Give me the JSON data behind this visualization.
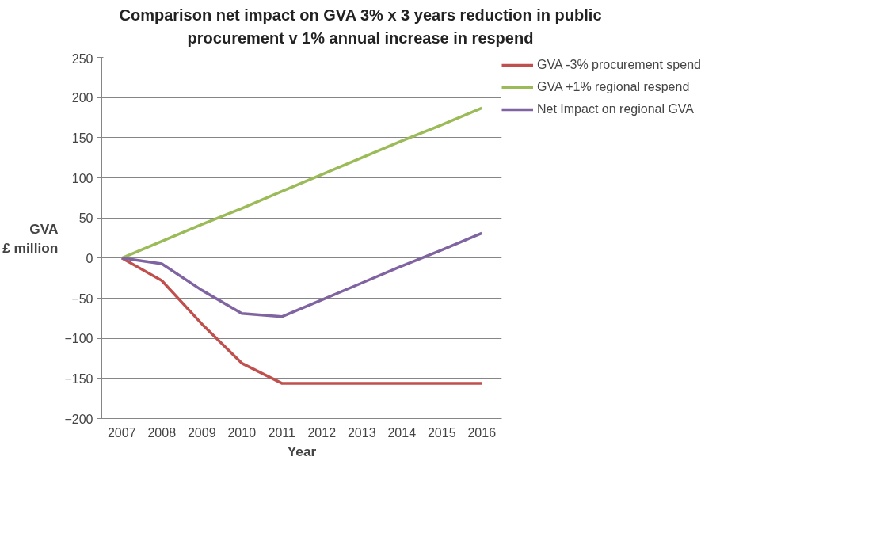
{
  "chart_data": {
    "type": "line",
    "title": "Comparison net impact on GVA 3% x 3 years reduction in public procurement v 1% annual increase in respend",
    "xlabel": "Year",
    "ylabel": "GVA\n£ million",
    "categories": [
      "2007",
      "2008",
      "2009",
      "2010",
      "2011",
      "2012",
      "2013",
      "2014",
      "2015",
      "2016"
    ],
    "series": [
      {
        "name": "GVA -3% procurement spend",
        "color": "#c0504d",
        "values": [
          0,
          -28,
          -82,
          -131,
          -156,
          -156,
          -156,
          -156,
          -156,
          -156
        ]
      },
      {
        "name": "GVA +1% regional respend",
        "color": "#9bbb59",
        "values": [
          0,
          21,
          42,
          62,
          83,
          104,
          125,
          146,
          166,
          187
        ]
      },
      {
        "name": "Net Impact on regional GVA",
        "color": "#8064a2",
        "values": [
          0,
          -7,
          -40,
          -69,
          -73,
          -52,
          -31,
          -10,
          10,
          31
        ]
      }
    ],
    "ylim": [
      -200,
      250
    ],
    "yticks": [
      -200,
      -150,
      -100,
      -50,
      0,
      50,
      100,
      150,
      200,
      250
    ],
    "grid": "y",
    "legend": "right",
    "marker": "none",
    "line_style": "solid"
  }
}
